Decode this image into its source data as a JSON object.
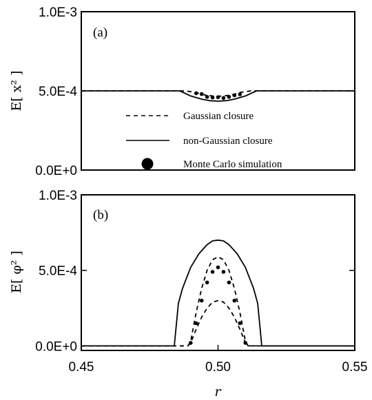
{
  "chart_data": [
    {
      "type": "line",
      "panel_label": "(a)",
      "ylabel": "E[ x² ]",
      "ylim": [
        0,
        0.001
      ],
      "y_ticks": [
        0,
        0.0005,
        0.001
      ],
      "y_tick_labels": [
        "0.0E+0",
        "5.0E-4",
        "1.0E-3"
      ],
      "xlim": [
        0.45,
        0.55
      ],
      "series": [
        {
          "name": "Gaussian closure",
          "style": "dashed",
          "x": [
            0.45,
            0.488,
            0.492,
            0.495,
            0.498,
            0.5,
            0.502,
            0.505,
            0.508,
            0.512,
            0.55
          ],
          "y": [
            0.0005,
            0.0005,
            0.00049,
            0.000475,
            0.000468,
            0.000466,
            0.000468,
            0.000475,
            0.00049,
            0.0005,
            0.0005
          ]
        },
        {
          "name": "non-Gaussian closure",
          "style": "solid",
          "x": [
            0.45,
            0.486,
            0.49,
            0.494,
            0.497,
            0.5,
            0.503,
            0.506,
            0.51,
            0.514,
            0.55
          ],
          "y": [
            0.0005,
            0.0005,
            0.000468,
            0.000448,
            0.000438,
            0.000435,
            0.000438,
            0.000448,
            0.000468,
            0.0005,
            0.0005
          ]
        },
        {
          "name": "Monte Carlo simulation",
          "style": "dots",
          "x": [
            0.492,
            0.494,
            0.496,
            0.498,
            0.5,
            0.502,
            0.504,
            0.506,
            0.508
          ],
          "y": [
            0.000485,
            0.00048,
            0.000462,
            0.000458,
            0.00046,
            0.000455,
            0.000462,
            0.000472,
            0.000478
          ]
        }
      ],
      "legend": [
        {
          "label": "Gaussian closure",
          "style": "dashed"
        },
        {
          "label": "non-Gaussian closure",
          "style": "solid"
        },
        {
          "label": "Monte Carlo simulation",
          "style": "dot"
        }
      ]
    },
    {
      "type": "line",
      "panel_label": "(b)",
      "ylabel": "E[ φ² ]",
      "xlabel": "r",
      "ylim": [
        -3e-05,
        0.001
      ],
      "y_ticks": [
        0,
        0.0005,
        0.001
      ],
      "y_tick_labels": [
        "0.0E+0",
        "5.0E-4",
        "1.0E-3"
      ],
      "xlim": [
        0.45,
        0.55
      ],
      "x_ticks": [
        0.45,
        0.5,
        0.55
      ],
      "x_tick_labels": [
        "0.45",
        "0.50",
        "0.55"
      ],
      "series": [
        {
          "name": "non-Gaussian closure",
          "style": "solid",
          "x": [
            0.45,
            0.484,
            0.4855,
            0.487,
            0.49,
            0.493,
            0.496,
            0.498,
            0.5,
            0.502,
            0.504,
            0.507,
            0.51,
            0.513,
            0.5145,
            0.516,
            0.55
          ],
          "y": [
            0,
            0,
            0.00028,
            0.00038,
            0.00052,
            0.00061,
            0.00067,
            0.000695,
            0.0007,
            0.000695,
            0.00067,
            0.00061,
            0.00052,
            0.00038,
            0.00028,
            0,
            0
          ]
        },
        {
          "name": "Gaussian closure (upper)",
          "style": "dashed",
          "x": [
            0.45,
            0.489,
            0.49,
            0.492,
            0.494,
            0.496,
            0.498,
            0.5,
            0.502,
            0.504,
            0.506,
            0.508,
            0.51,
            0.511,
            0.55
          ],
          "y": [
            0,
            0,
            3e-05,
            0.00022,
            0.00038,
            0.0005,
            0.00057,
            0.00059,
            0.00057,
            0.0005,
            0.00038,
            0.00022,
            3e-05,
            0,
            0
          ]
        },
        {
          "name": "Gaussian closure (lower)",
          "style": "dashed",
          "x": [
            0.45,
            0.489,
            0.49,
            0.492,
            0.494,
            0.496,
            0.498,
            0.5,
            0.502,
            0.504,
            0.506,
            0.508,
            0.51,
            0.511,
            0.55
          ],
          "y": [
            0,
            0,
            2e-05,
            0.00011,
            0.00019,
            0.00025,
            0.00029,
            0.0003,
            0.00029,
            0.00025,
            0.00019,
            0.00011,
            2e-05,
            0,
            0
          ]
        },
        {
          "name": "Monte Carlo simulation",
          "style": "dots",
          "x": [
            0.49,
            0.492,
            0.494,
            0.496,
            0.498,
            0.5,
            0.502,
            0.504,
            0.506,
            0.508,
            0.51
          ],
          "y": [
            2e-05,
            0.00015,
            0.0003,
            0.00042,
            0.00049,
            0.00052,
            0.00049,
            0.00042,
            0.0003,
            0.00015,
            2e-05
          ]
        }
      ]
    }
  ]
}
